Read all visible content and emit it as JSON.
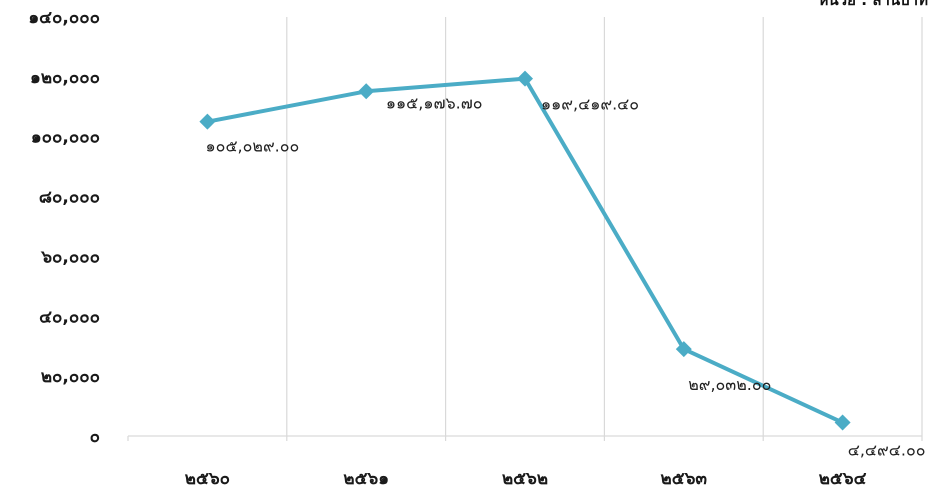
{
  "chart_data": {
    "type": "line",
    "unit_label": "หน่วย : ล้านบาท",
    "categories": [
      "๒๕๖๐",
      "๒๕๖๑",
      "๒๕๖๒",
      "๒๕๖๓",
      "๒๕๖๔"
    ],
    "series": [
      {
        "values": [
          105029.0,
          115176.7,
          119419.4,
          29032.0,
          4494.0
        ],
        "data_labels": [
          "๑๐๕,๐๒๙.๐๐",
          "๑๑๕,๑๗๖.๗๐",
          "๑๑๙,๔๑๙.๔๐",
          "๒๙,๐๓๒.๐๐",
          "๔,๔๙๔.๐๐"
        ],
        "color": "#4bacc6"
      }
    ],
    "ylim": [
      0,
      140000
    ],
    "yticks": [
      0,
      20000,
      40000,
      60000,
      80000,
      100000,
      120000,
      140000
    ],
    "ytick_labels": [
      "๐",
      "๒๐,๐๐๐",
      "๔๐,๐๐๐",
      "๖๐,๐๐๐",
      "๘๐,๐๐๐",
      "๑๐๐,๐๐๐",
      "๑๒๐,๐๐๐",
      "๑๔๐,๐๐๐"
    ],
    "grid": "vertical",
    "legend": "none"
  }
}
